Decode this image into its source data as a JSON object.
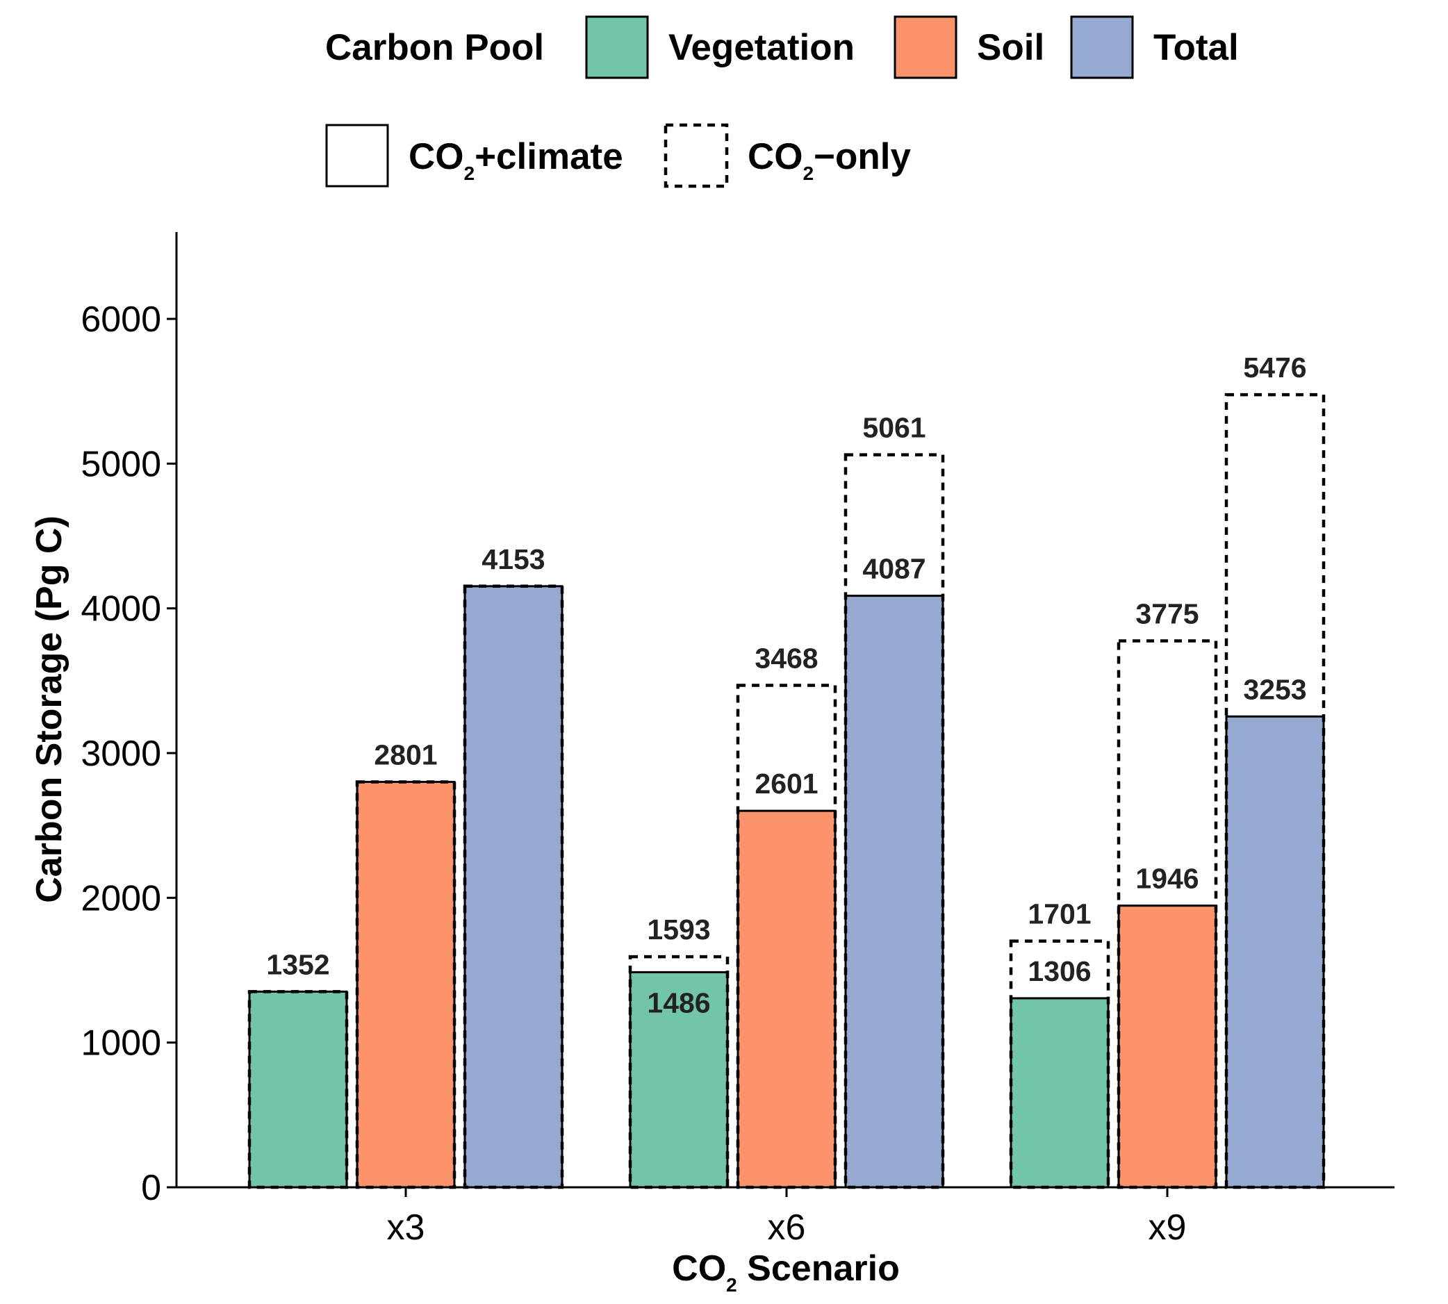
{
  "chart_data": {
    "type": "bar",
    "categories": [
      "x3",
      "x6",
      "x9"
    ],
    "ylim": [
      0,
      6500
    ],
    "yticks": [
      0,
      1000,
      2000,
      3000,
      4000,
      5000,
      6000
    ],
    "xlabel": {
      "prefix": "CO",
      "sub": "2",
      "suffix": " Scenario"
    },
    "ylabel": "Carbon Storage (Pg C)",
    "grid": false,
    "legend_position": "top",
    "legend": {
      "fill_title": "Carbon Pool",
      "fill_items": [
        {
          "label": "Vegetation",
          "color": "#72c5a7"
        },
        {
          "label": "Soil",
          "color": "#fc936a"
        },
        {
          "label": "Total",
          "color": "#95a9d1"
        }
      ],
      "linetype_items": [
        {
          "prefix": "CO",
          "sub": "2",
          "suffix": "+climate",
          "linetype": "solid"
        },
        {
          "prefix": "CO",
          "sub": "2",
          "suffix": "−only",
          "linetype": "dashed"
        }
      ]
    },
    "series": [
      {
        "pool": "Vegetation",
        "color": "#72c5a7",
        "co2_climate": [
          1352,
          1486,
          1306
        ],
        "co2_only": [
          1352,
          1593,
          1701
        ],
        "climate_label_inside": [
          false,
          true,
          false
        ]
      },
      {
        "pool": "Soil",
        "color": "#fc936a",
        "co2_climate": [
          2801,
          2601,
          1946
        ],
        "co2_only": [
          2801,
          3468,
          3775
        ],
        "climate_label_inside": [
          false,
          false,
          false
        ]
      },
      {
        "pool": "Total",
        "color": "#95a9d1",
        "co2_climate": [
          4153,
          4087,
          3253
        ],
        "co2_only": [
          4153,
          5061,
          5476
        ],
        "climate_label_inside": [
          false,
          false,
          false
        ]
      }
    ]
  }
}
